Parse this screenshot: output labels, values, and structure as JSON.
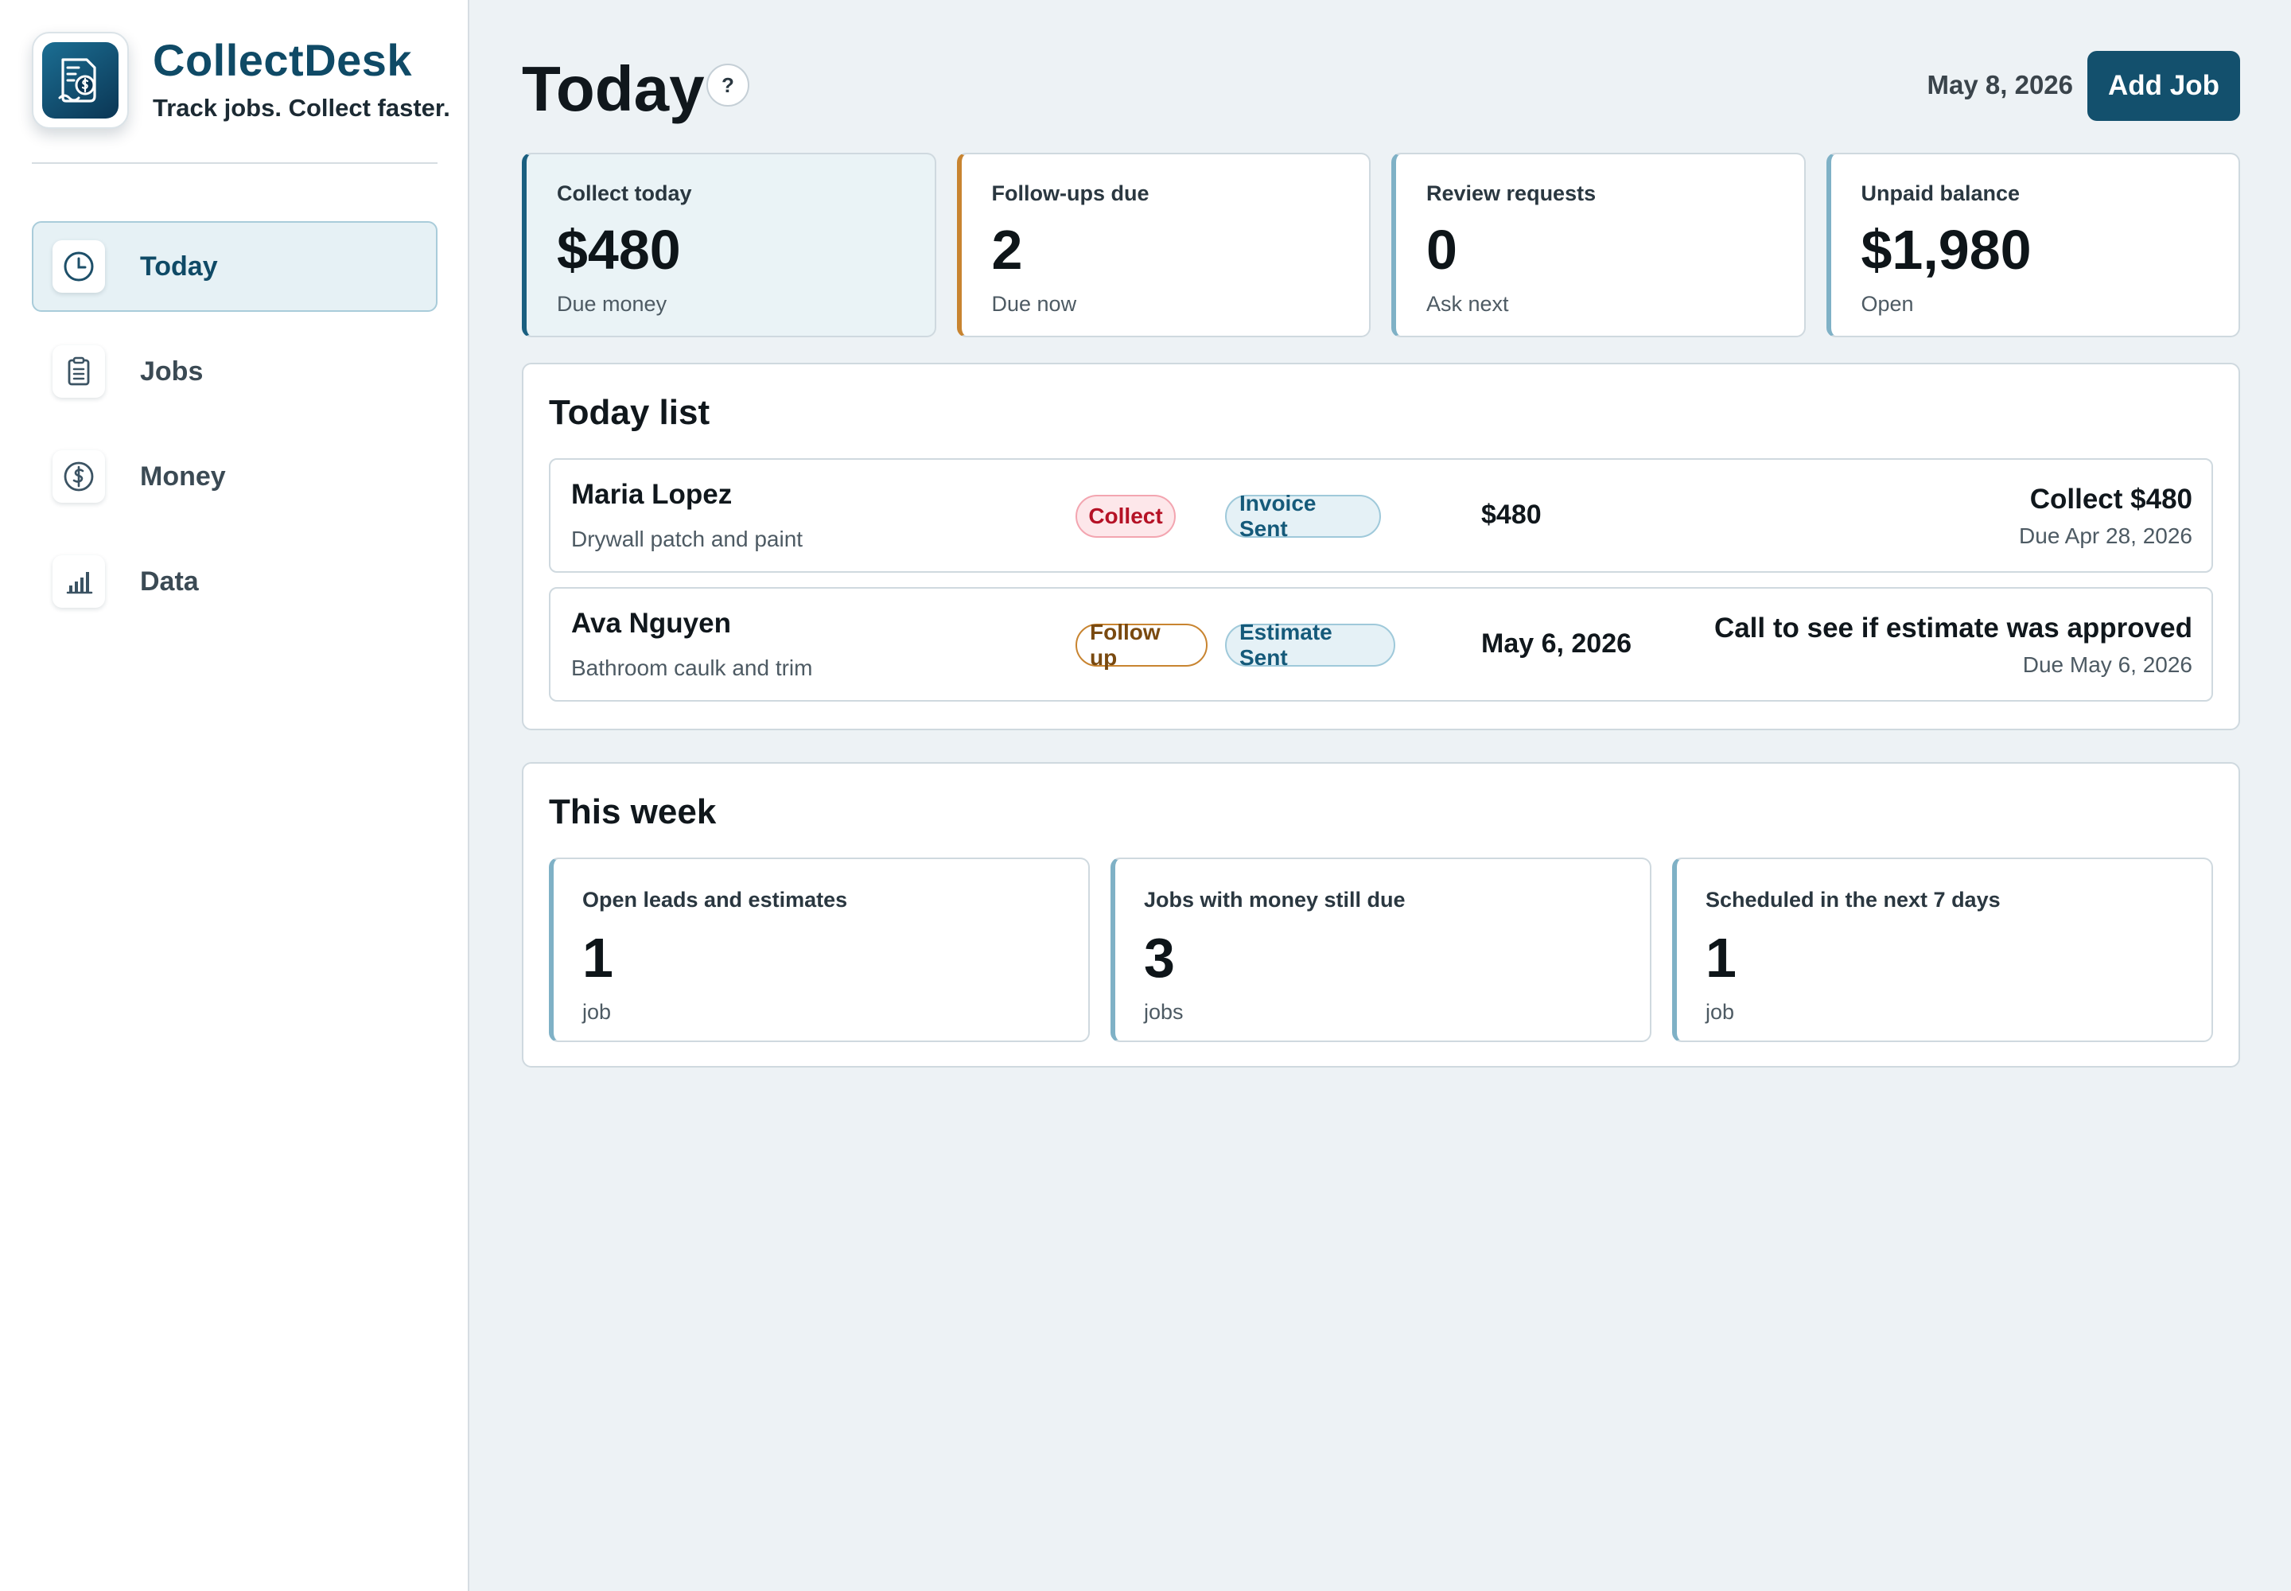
{
  "brand": {
    "name": "CollectDesk",
    "tagline": "Track jobs. Collect faster."
  },
  "nav": [
    {
      "label": "Today",
      "icon": "clock-icon",
      "active": true
    },
    {
      "label": "Jobs",
      "icon": "clipboard-icon",
      "active": false
    },
    {
      "label": "Money",
      "icon": "dollar-circle-icon",
      "active": false
    },
    {
      "label": "Data",
      "icon": "bar-chart-icon",
      "active": false
    }
  ],
  "header": {
    "title": "Today",
    "help": "?",
    "date": "May 8, 2026",
    "add_job": "Add Job"
  },
  "stats": [
    {
      "label": "Collect today",
      "value": "$480",
      "sub": "Due money"
    },
    {
      "label": "Follow-ups due",
      "value": "2",
      "sub": "Due now"
    },
    {
      "label": "Review requests",
      "value": "0",
      "sub": "Ask next"
    },
    {
      "label": "Unpaid balance",
      "value": "$1,980",
      "sub": "Open"
    }
  ],
  "today_list": {
    "title": "Today list",
    "rows": [
      {
        "name": "Maria Lopez",
        "desc": "Drywall patch and paint",
        "badge": "Collect",
        "status": "Invoice Sent",
        "mid": "$480",
        "action": "Collect $480",
        "due": "Due Apr 28, 2026"
      },
      {
        "name": "Ava Nguyen",
        "desc": "Bathroom caulk and trim",
        "badge": "Follow up",
        "status": "Estimate Sent",
        "mid": "May 6, 2026",
        "action": "Call to see if estimate was approved",
        "due": "Due May 6, 2026"
      }
    ]
  },
  "this_week": {
    "title": "This week",
    "cards": [
      {
        "label": "Open leads and estimates",
        "value": "1",
        "sub": "job"
      },
      {
        "label": "Jobs with money still due",
        "value": "3",
        "sub": "jobs"
      },
      {
        "label": "Scheduled in the next 7 days",
        "value": "1",
        "sub": "job"
      }
    ]
  },
  "colors": {
    "brand": "#0f4a66",
    "accent": "#13506d",
    "collect": "#b51226",
    "follow_up": "#c88430"
  }
}
